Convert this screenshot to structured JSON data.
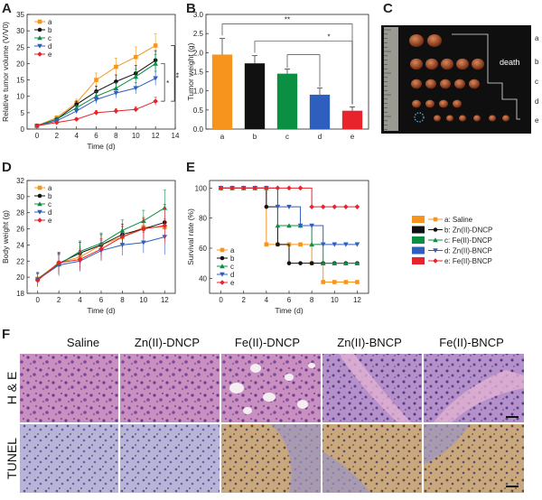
{
  "panel_letters": [
    "A",
    "B",
    "C",
    "D",
    "E",
    "F"
  ],
  "colors": {
    "a": "#f7941d",
    "b": "#111111",
    "c": "#0a8f43",
    "d": "#2e5fbf",
    "e": "#e8232b"
  },
  "legend": {
    "a": "a: Saline",
    "b": "b: Zn(II)-DNCP",
    "c": "c: Fe(II)-DNCP",
    "d": "d: Zn(II)-BNCP",
    "e": "e: Fe(II)-BNCP"
  },
  "photo_c": {
    "death_label": "death",
    "row_labels": [
      "a",
      "b",
      "c",
      "d",
      "e"
    ]
  },
  "histology": {
    "columns": [
      "Saline",
      "Zn(II)-DNCP",
      "Fe(II)-DNCP",
      "Zn(II)-BNCP",
      "Fe(II)-BNCP"
    ],
    "rows": [
      "H & E",
      "TUNEL"
    ]
  },
  "chart_data": [
    {
      "id": "A",
      "type": "line",
      "xlabel": "Time (d)",
      "ylabel": "Relative tumor volume (V/V0)",
      "xlim": [
        -1,
        14
      ],
      "ylim": [
        0,
        35
      ],
      "xticks": [
        0,
        2,
        4,
        6,
        8,
        10,
        12,
        14
      ],
      "yticks": [
        0,
        5,
        10,
        15,
        20,
        25,
        30,
        35
      ],
      "x": [
        0,
        2,
        4,
        6,
        8,
        10,
        12
      ],
      "series": [
        {
          "name": "a",
          "values": [
            1,
            3.5,
            8,
            15,
            19,
            22,
            25.5
          ]
        },
        {
          "name": "b",
          "values": [
            1,
            3,
            7.5,
            11.5,
            14.5,
            17,
            21
          ]
        },
        {
          "name": "c",
          "values": [
            1,
            3,
            6.5,
            10,
            12.5,
            16,
            20
          ]
        },
        {
          "name": "d",
          "values": [
            1,
            2.5,
            5.5,
            9,
            11,
            12.5,
            15.5
          ]
        },
        {
          "name": "e",
          "values": [
            1,
            2,
            3,
            5,
            5.5,
            6,
            8.5
          ]
        }
      ],
      "significance": [
        "*",
        "**"
      ],
      "legend_position": "top-left"
    },
    {
      "id": "B",
      "type": "bar",
      "ylabel": "Tumor weight (g)",
      "categories": [
        "a",
        "b",
        "c",
        "d",
        "e"
      ],
      "values": [
        1.95,
        1.72,
        1.45,
        0.9,
        0.48
      ],
      "ylim": [
        0,
        3.0
      ],
      "yticks": [
        0.0,
        0.5,
        1.0,
        1.5,
        2.0,
        2.5,
        3.0
      ],
      "significance": [
        "**",
        "*"
      ]
    },
    {
      "id": "D",
      "type": "line",
      "xlabel": "Time (d)",
      "ylabel": "Body weight (g)",
      "xlim": [
        -1,
        13
      ],
      "ylim": [
        18,
        32
      ],
      "xticks": [
        0,
        2,
        4,
        6,
        8,
        10,
        12
      ],
      "yticks": [
        18,
        20,
        22,
        24,
        26,
        28,
        30,
        32
      ],
      "x": [
        0,
        2,
        4,
        6,
        8,
        10,
        12
      ],
      "series": [
        {
          "name": "a",
          "values": [
            19.8,
            21.8,
            22.5,
            24.0,
            25.0,
            26.2,
            26.2
          ]
        },
        {
          "name": "b",
          "values": [
            19.7,
            21.7,
            23.0,
            24.0,
            25.3,
            26.0,
            26.8
          ]
        },
        {
          "name": "c",
          "values": [
            19.8,
            21.6,
            23.2,
            24.2,
            25.8,
            27.0,
            28.6
          ]
        },
        {
          "name": "d",
          "values": [
            19.7,
            21.5,
            22.0,
            23.3,
            24.0,
            24.3,
            25.0
          ]
        },
        {
          "name": "e",
          "values": [
            19.6,
            21.8,
            22.2,
            23.5,
            25.0,
            26.0,
            26.4
          ]
        }
      ],
      "legend_position": "top-left"
    },
    {
      "id": "E",
      "type": "line",
      "xlabel": "Time (d)",
      "ylabel": "Survival rate (%)",
      "xlim": [
        -1,
        13
      ],
      "ylim": [
        30,
        105
      ],
      "xticks": [
        0,
        2,
        4,
        6,
        8,
        10,
        12
      ],
      "yticks": [
        40,
        60,
        80,
        100
      ],
      "x": [
        0,
        1,
        2,
        3,
        4,
        5,
        6,
        7,
        8,
        9,
        10,
        11,
        12
      ],
      "series": [
        {
          "name": "a",
          "values": [
            100,
            100,
            100,
            100,
            62.5,
            62.5,
            62.5,
            62.5,
            50,
            37.5,
            37.5,
            37.5,
            37.5
          ]
        },
        {
          "name": "b",
          "values": [
            100,
            100,
            100,
            100,
            87.5,
            62.5,
            50,
            50,
            50,
            50,
            50,
            50,
            50
          ]
        },
        {
          "name": "c",
          "values": [
            100,
            100,
            100,
            100,
            100,
            75,
            75,
            75,
            62.5,
            50,
            50,
            50,
            50
          ]
        },
        {
          "name": "d",
          "values": [
            100,
            100,
            100,
            100,
            100,
            87.5,
            87.5,
            75,
            75,
            62.5,
            62.5,
            62.5,
            62.5
          ]
        },
        {
          "name": "e",
          "values": [
            100,
            100,
            100,
            100,
            100,
            100,
            100,
            100,
            87.5,
            87.5,
            87.5,
            87.5,
            87.5
          ]
        }
      ],
      "legend_position": "bottom-left"
    }
  ]
}
